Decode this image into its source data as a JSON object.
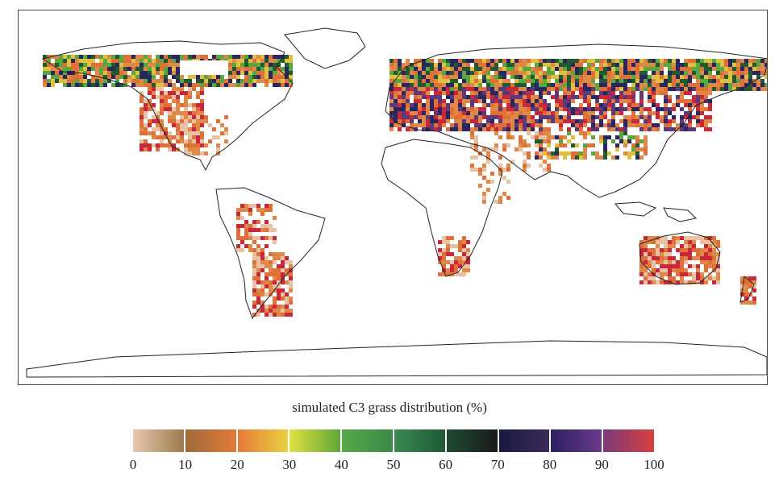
{
  "legend": {
    "title": "simulated C3 grass distribution (%)",
    "ticks": [
      "0",
      "10",
      "20",
      "30",
      "40",
      "50",
      "60",
      "70",
      "80",
      "90",
      "100"
    ],
    "segments": [
      {
        "from": "#e8c9b0",
        "to": "#9a7a4a"
      },
      {
        "from": "#a06a3a",
        "to": "#e27a3a"
      },
      {
        "from": "#e87a3a",
        "to": "#e8d040"
      },
      {
        "from": "#e0e040",
        "to": "#60a838"
      },
      {
        "from": "#58a848",
        "to": "#3a8a48"
      },
      {
        "from": "#3a8a50",
        "to": "#1f5a38"
      },
      {
        "from": "#1f4a30",
        "to": "#1a1a1a"
      },
      {
        "from": "#1a1a40",
        "to": "#3a2a5a"
      },
      {
        "from": "#2a2060",
        "to": "#6a3a8a"
      },
      {
        "from": "#7a3a7a",
        "to": "#d84040"
      }
    ]
  },
  "map": {
    "colors": {
      "low": "#e9c2a6",
      "mid_low": "#e08848",
      "orange": "#e07038",
      "yellow": "#e0c040",
      "green": "#58a840",
      "dark_green": "#1f5a30",
      "navy": "#2a2660",
      "purple": "#5a3a7a",
      "red": "#c8283a",
      "coast": "#222222"
    }
  }
}
